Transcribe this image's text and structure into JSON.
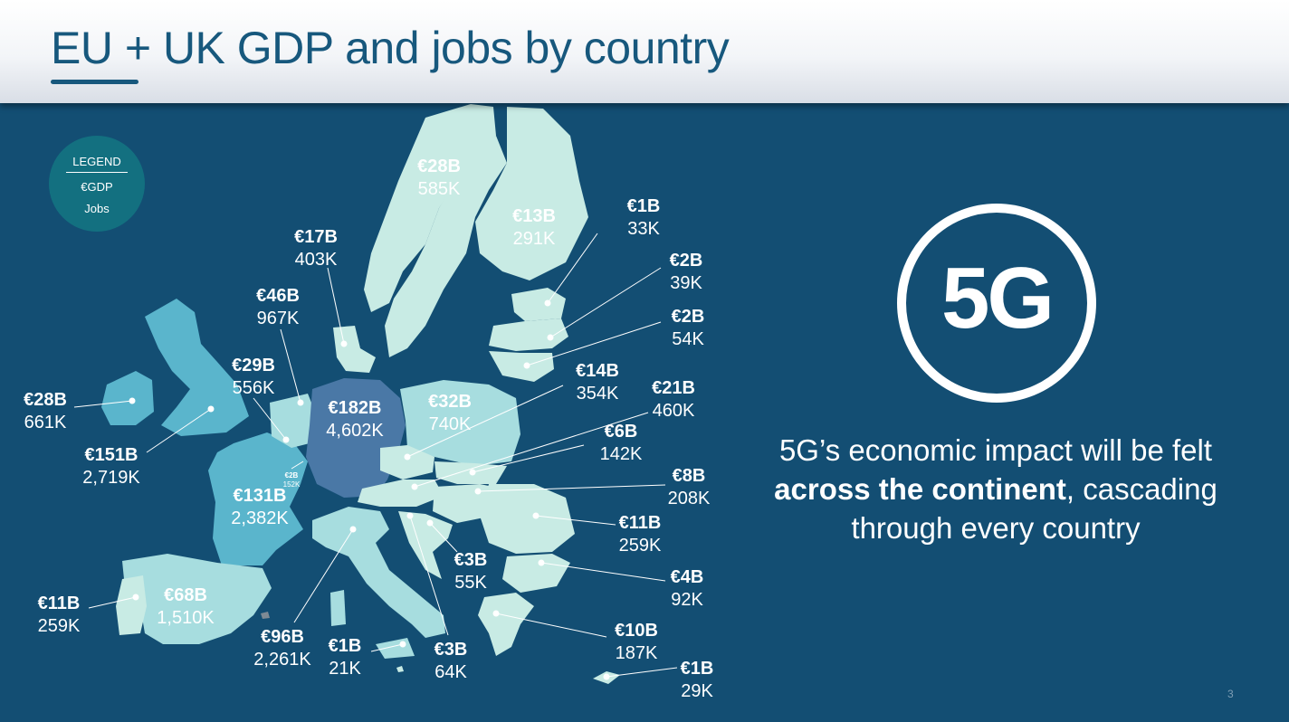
{
  "header": {
    "title": "EU + UK GDP and jobs by country"
  },
  "legend": {
    "title": "LEGEND",
    "gdp_label": "€GDP",
    "jobs_label": "Jobs"
  },
  "hero": {
    "icon_text": "5G",
    "tagline_part1": "5G’s economic impact will be felt",
    "tagline_bold": "across the continent",
    "tagline_part2": ", cascading through every country"
  },
  "footer": {
    "page_number": "3"
  },
  "colors": {
    "background": "#134e73",
    "title": "#17587d",
    "tier_top": "#4a78a6",
    "tier_high": "#5ab5cc",
    "tier_mid": "#a7dddf",
    "tier_low": "#c8ebe4"
  },
  "countries": [
    {
      "gdp": "€28B",
      "jobs": "585K"
    },
    {
      "gdp": "€13B",
      "jobs": "291K"
    },
    {
      "gdp": "€1B",
      "jobs": "33K"
    },
    {
      "gdp": "€2B",
      "jobs": "39K"
    },
    {
      "gdp": "€2B",
      "jobs": "54K"
    },
    {
      "gdp": "€17B",
      "jobs": "403K"
    },
    {
      "gdp": "€46B",
      "jobs": "967K"
    },
    {
      "gdp": "€28B",
      "jobs": "661K"
    },
    {
      "gdp": "€29B",
      "jobs": "556K"
    },
    {
      "gdp": "€151B",
      "jobs": "2,719K"
    },
    {
      "gdp": "€182B",
      "jobs": "4,602K"
    },
    {
      "gdp": "€32B",
      "jobs": "740K"
    },
    {
      "gdp": "€14B",
      "jobs": "354K"
    },
    {
      "gdp": "€21B",
      "jobs": "460K"
    },
    {
      "gdp": "€6B",
      "jobs": "142K"
    },
    {
      "gdp": "€8B",
      "jobs": "208K"
    },
    {
      "gdp": "€2B",
      "jobs": "152K"
    },
    {
      "gdp": "€131B",
      "jobs": "2,382K"
    },
    {
      "gdp": "€11B",
      "jobs": "259K"
    },
    {
      "gdp": "€3B",
      "jobs": "55K"
    },
    {
      "gdp": "€4B",
      "jobs": "92K"
    },
    {
      "gdp": "€11B",
      "jobs": "259K"
    },
    {
      "gdp": "€68B",
      "jobs": "1,510K"
    },
    {
      "gdp": "€96B",
      "jobs": "2,261K"
    },
    {
      "gdp": "€1B",
      "jobs": "21K"
    },
    {
      "gdp": "€3B",
      "jobs": "64K"
    },
    {
      "gdp": "€10B",
      "jobs": "187K"
    },
    {
      "gdp": "€1B",
      "jobs": "29K"
    }
  ]
}
